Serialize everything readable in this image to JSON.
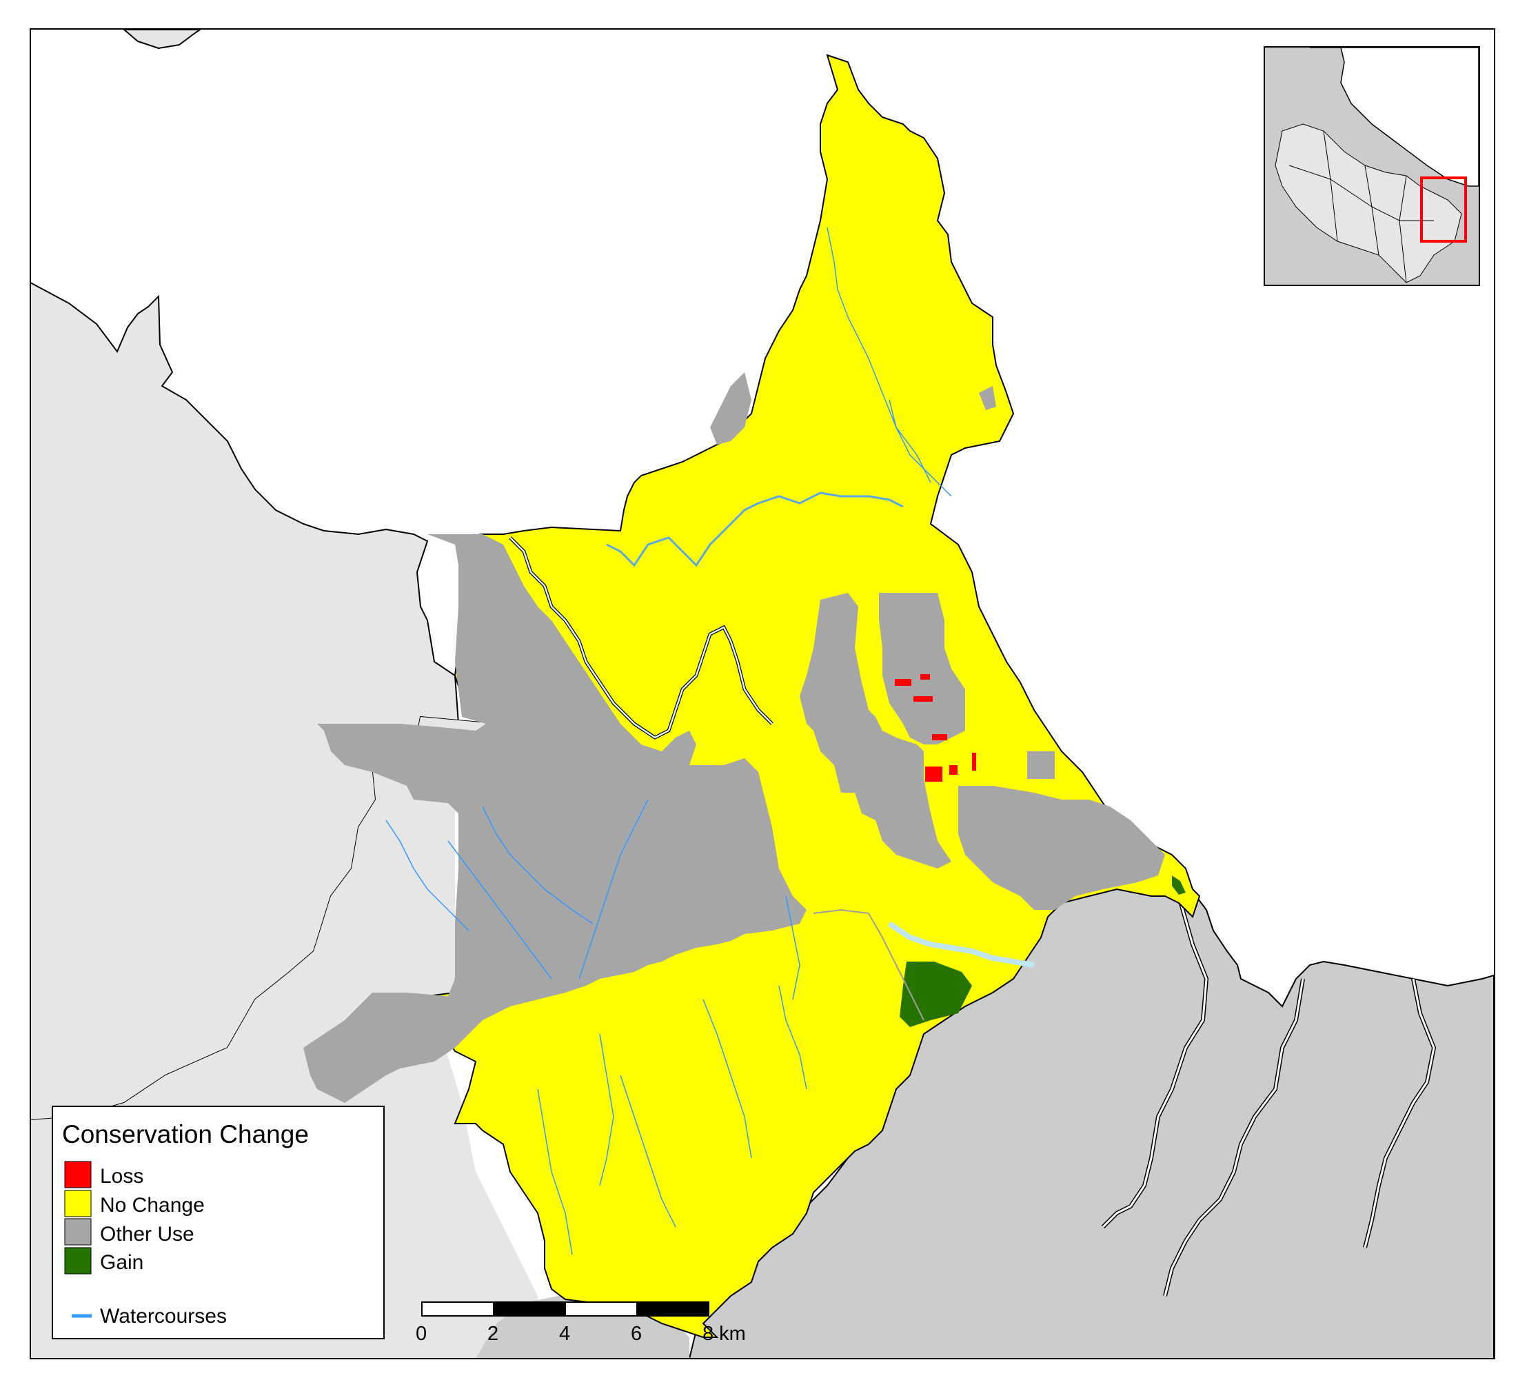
{
  "legend": {
    "title": "Conservation Change",
    "items": [
      {
        "label": "Loss",
        "color": "#ff0000"
      },
      {
        "label": "No Change",
        "color": "#ffff00"
      },
      {
        "label": "Other Use",
        "color": "#a6a6a6"
      },
      {
        "label": "Gain",
        "color": "#267300"
      }
    ],
    "line_item": {
      "label": "Watercourses",
      "color": "#3399ff"
    }
  },
  "scale_bar": {
    "ticks": [
      "0",
      "2",
      "4",
      "6",
      "8 km"
    ]
  },
  "colors": {
    "land_other_region": "#e6e6e6",
    "land_south": "#cccccc",
    "water": "#ffffff",
    "no_change": "#ffff00",
    "other_use": "#a6a6a6",
    "loss": "#ff0000",
    "gain": "#267300",
    "watercourse": "#3399ff",
    "inset_frame": "#ff0000"
  }
}
